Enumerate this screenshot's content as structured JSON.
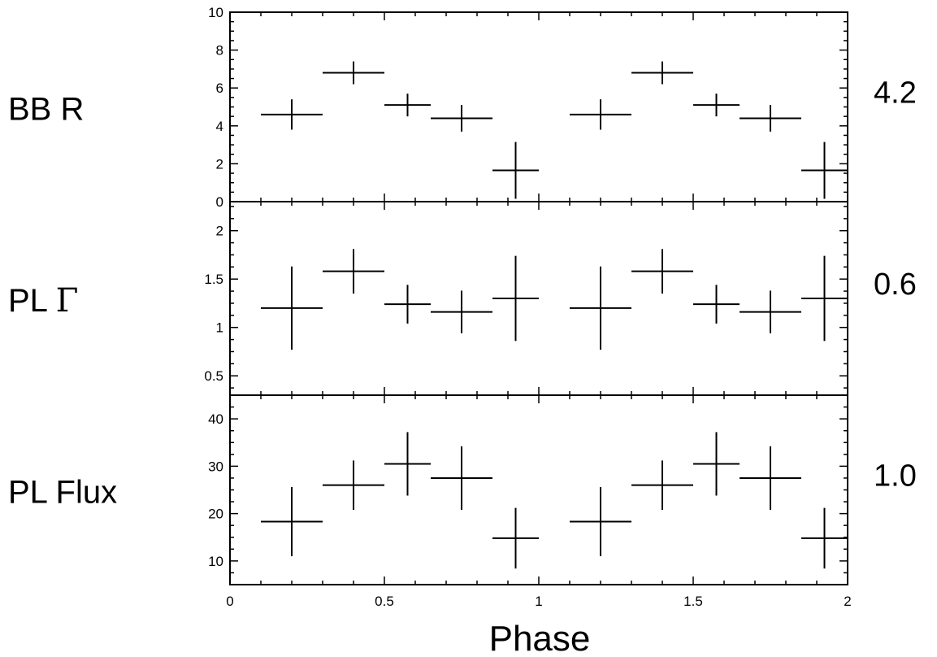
{
  "chart_data": {
    "type": "scatter",
    "xlabel": "Phase",
    "xlim": [
      0,
      2
    ],
    "x_ticks": [
      0,
      0.5,
      1,
      1.5,
      2
    ],
    "x_tick_labels": [
      "0",
      "0.5",
      "1",
      "1.5",
      "2"
    ],
    "panels": [
      {
        "label": "BB R",
        "value_text": "4.2",
        "ylim": [
          0,
          10
        ],
        "y_ticks": [
          0,
          2,
          4,
          6,
          8,
          10
        ],
        "y_tick_labels": [
          "0",
          "2",
          "4",
          "6",
          "8",
          "10"
        ],
        "points": [
          {
            "x": 0.2,
            "xerr": 0.1,
            "y": 4.6,
            "yerr": 0.8
          },
          {
            "x": 0.4,
            "xerr": 0.1,
            "y": 6.8,
            "yerr": 0.6
          },
          {
            "x": 0.575,
            "xerr": 0.075,
            "y": 5.1,
            "yerr": 0.6
          },
          {
            "x": 0.75,
            "xerr": 0.1,
            "y": 4.4,
            "yerr": 0.7
          },
          {
            "x": 0.925,
            "xerr": 0.075,
            "y": 1.65,
            "yerr": 1.5
          },
          {
            "x": 1.2,
            "xerr": 0.1,
            "y": 4.6,
            "yerr": 0.8
          },
          {
            "x": 1.4,
            "xerr": 0.1,
            "y": 6.8,
            "yerr": 0.6
          },
          {
            "x": 1.575,
            "xerr": 0.075,
            "y": 5.1,
            "yerr": 0.6
          },
          {
            "x": 1.75,
            "xerr": 0.1,
            "y": 4.4,
            "yerr": 0.7
          },
          {
            "x": 1.925,
            "xerr": 0.075,
            "y": 1.65,
            "yerr": 1.5
          }
        ]
      },
      {
        "label": "PL Γ",
        "value_text": "0.6",
        "ylim": [
          0.3,
          2.3
        ],
        "y_ticks": [
          0.5,
          1,
          1.5,
          2
        ],
        "y_tick_labels": [
          "0.5",
          "1",
          "1.5",
          "2"
        ],
        "points": [
          {
            "x": 0.2,
            "xerr": 0.1,
            "y": 1.2,
            "yerr": 0.43
          },
          {
            "x": 0.4,
            "xerr": 0.1,
            "y": 1.58,
            "yerr": 0.23
          },
          {
            "x": 0.575,
            "xerr": 0.075,
            "y": 1.24,
            "yerr": 0.2
          },
          {
            "x": 0.75,
            "xerr": 0.1,
            "y": 1.16,
            "yerr": 0.22
          },
          {
            "x": 0.925,
            "xerr": 0.075,
            "y": 1.3,
            "yerr": 0.44
          },
          {
            "x": 1.2,
            "xerr": 0.1,
            "y": 1.2,
            "yerr": 0.43
          },
          {
            "x": 1.4,
            "xerr": 0.1,
            "y": 1.58,
            "yerr": 0.23
          },
          {
            "x": 1.575,
            "xerr": 0.075,
            "y": 1.24,
            "yerr": 0.2
          },
          {
            "x": 1.75,
            "xerr": 0.1,
            "y": 1.16,
            "yerr": 0.22
          },
          {
            "x": 1.925,
            "xerr": 0.075,
            "y": 1.3,
            "yerr": 0.44
          }
        ]
      },
      {
        "label": "PL Flux",
        "value_text": "1.0",
        "ylim": [
          5,
          45
        ],
        "y_ticks": [
          10,
          20,
          30,
          40
        ],
        "y_tick_labels": [
          "10",
          "20",
          "30",
          "40"
        ],
        "points": [
          {
            "x": 0.2,
            "xerr": 0.1,
            "y": 18.3,
            "yerr": 7.3
          },
          {
            "x": 0.4,
            "xerr": 0.1,
            "y": 26,
            "yerr": 5.2
          },
          {
            "x": 0.575,
            "xerr": 0.075,
            "y": 30.5,
            "yerr": 6.7
          },
          {
            "x": 0.75,
            "xerr": 0.1,
            "y": 27.5,
            "yerr": 6.7
          },
          {
            "x": 0.925,
            "xerr": 0.075,
            "y": 14.8,
            "yerr": 6.4
          },
          {
            "x": 1.2,
            "xerr": 0.1,
            "y": 18.3,
            "yerr": 7.3
          },
          {
            "x": 1.4,
            "xerr": 0.1,
            "y": 26,
            "yerr": 5.2
          },
          {
            "x": 1.575,
            "xerr": 0.075,
            "y": 30.5,
            "yerr": 6.7
          },
          {
            "x": 1.75,
            "xerr": 0.1,
            "y": 27.5,
            "yerr": 6.7
          },
          {
            "x": 1.925,
            "xerr": 0.075,
            "y": 14.8,
            "yerr": 6.4
          }
        ]
      }
    ]
  }
}
